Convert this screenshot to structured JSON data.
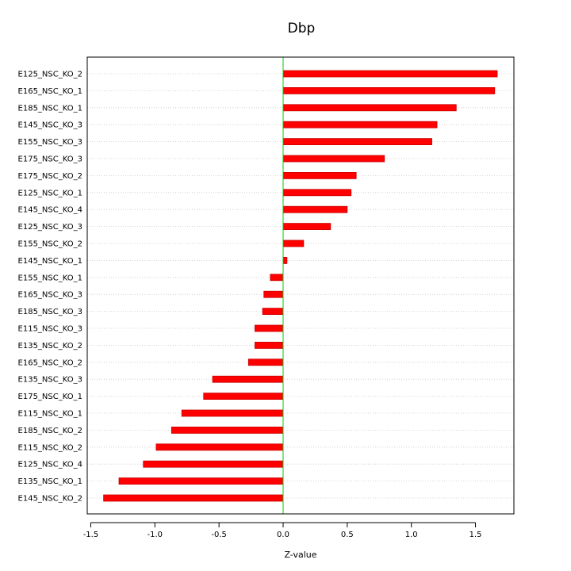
{
  "chart_data": {
    "type": "bar",
    "orientation": "horizontal",
    "title": "Dbp",
    "xlabel": "Z-value",
    "ylabel": "",
    "xlim": [
      -1.5,
      1.8
    ],
    "xticks": [
      -1.5,
      -1.0,
      -0.5,
      0.0,
      0.5,
      1.0,
      1.5
    ],
    "xtick_labels": [
      "-1.5",
      "-1.0",
      "-0.5",
      "0.0",
      "0.5",
      "1.0",
      "1.5"
    ],
    "grid": "horizontal dotted",
    "legend": "none",
    "bar_color": "#ff0000",
    "bar_edge_color": "#cc0000",
    "zero_line_color": "#00cc00",
    "categories": [
      "E125_NSC_KO_2",
      "E165_NSC_KO_1",
      "E185_NSC_KO_1",
      "E145_NSC_KO_3",
      "E155_NSC_KO_3",
      "E175_NSC_KO_3",
      "E175_NSC_KO_2",
      "E125_NSC_KO_1",
      "E145_NSC_KO_4",
      "E125_NSC_KO_3",
      "E155_NSC_KO_2",
      "E145_NSC_KO_1",
      "E155_NSC_KO_1",
      "E165_NSC_KO_3",
      "E185_NSC_KO_3",
      "E115_NSC_KO_3",
      "E135_NSC_KO_2",
      "E165_NSC_KO_2",
      "E135_NSC_KO_3",
      "E175_NSC_KO_1",
      "E115_NSC_KO_1",
      "E185_NSC_KO_2",
      "E115_NSC_KO_2",
      "E125_NSC_KO_4",
      "E135_NSC_KO_1",
      "E145_NSC_KO_2"
    ],
    "values": [
      1.67,
      1.65,
      1.35,
      1.2,
      1.16,
      0.79,
      0.57,
      0.53,
      0.5,
      0.37,
      0.16,
      0.03,
      -0.1,
      -0.15,
      -0.16,
      -0.22,
      -0.22,
      -0.27,
      -0.55,
      -0.62,
      -0.79,
      -0.87,
      -0.99,
      -1.09,
      -1.28,
      -1.4
    ]
  }
}
